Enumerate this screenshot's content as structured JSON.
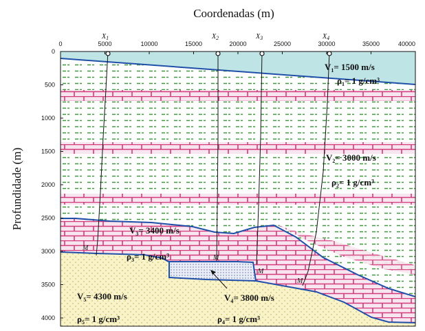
{
  "title": "Coordenadas (m)",
  "ylabel": "Profundidade (m)",
  "x_ticks": [
    "0",
    "5000",
    "10000",
    "15000",
    "20000",
    "25000",
    "30000",
    "35000",
    "40000"
  ],
  "y_ticks": [
    "0",
    "500",
    "1000",
    "1500",
    "2000",
    "2500",
    "3000",
    "3500",
    "4000"
  ],
  "wells": [
    {
      "label": "X",
      "sub": "1"
    },
    {
      "label": "X",
      "sub": "2"
    },
    {
      "label": "X",
      "sub": "3"
    },
    {
      "label": "X",
      "sub": "4"
    }
  ],
  "horizon_marks": [
    "M",
    "M",
    "M",
    "M"
  ],
  "layers": [
    {
      "v": "V",
      "vsub": "1",
      "v_val": "= 1500 m/s",
      "rho": "ρ",
      "rhosub": "1",
      "rho_val": "= 1 g/cm³"
    },
    {
      "v": "V",
      "vsub": "2",
      "v_val": "= 3000 m/s",
      "rho": "ρ",
      "rhosub": "2",
      "rho_val": "= 1 g/cm³"
    },
    {
      "v": "V",
      "vsub": "3",
      "v_val": "= 3400 m/s",
      "rho": "ρ",
      "rhosub": "3",
      "rho_val": "= 1 g/cm³"
    },
    {
      "v": "V",
      "vsub": "4",
      "v_val": "= 3800 m/s",
      "rho": "ρ",
      "rhosub": "4",
      "rho_val": "= 1 g/cm³"
    },
    {
      "v": "V",
      "vsub": "5",
      "v_val": "= 4300 m/s",
      "rho": "ρ",
      "rhosub": "5",
      "rho_val": "= 1 g/cm³"
    }
  ],
  "colors": {
    "water": "#bfe4e6",
    "green_dash": "#3c9a3c",
    "brick": "#d23a7c",
    "brick_bg": "#f6e2ee",
    "sand": "#f7f2c4",
    "sand_dot": "#c9ad53",
    "horizon": "#1f4fa8",
    "dots_bg": "#e8ecf6"
  }
}
